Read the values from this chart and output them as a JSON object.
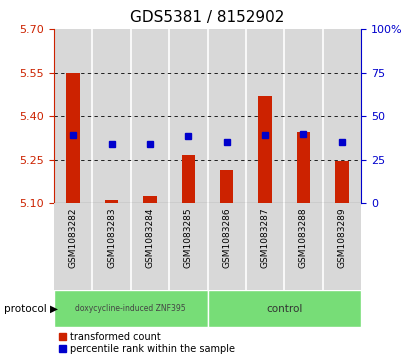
{
  "title": "GDS5381 / 8152902",
  "samples": [
    "GSM1083282",
    "GSM1083283",
    "GSM1083284",
    "GSM1083285",
    "GSM1083286",
    "GSM1083287",
    "GSM1083288",
    "GSM1083289"
  ],
  "bar_tops": [
    5.548,
    5.112,
    5.125,
    5.265,
    5.215,
    5.47,
    5.345,
    5.245
  ],
  "bar_bottom": 5.1,
  "blue_y": [
    5.335,
    5.305,
    5.305,
    5.33,
    5.31,
    5.335,
    5.34,
    5.31
  ],
  "ylim": [
    5.1,
    5.7
  ],
  "y2lim": [
    0,
    100
  ],
  "yticks_left": [
    5.1,
    5.25,
    5.4,
    5.55,
    5.7
  ],
  "y2ticks": [
    0,
    25,
    50,
    75,
    100
  ],
  "y2tick_labels": [
    "0",
    "25",
    "50",
    "75",
    "100%"
  ],
  "bar_color": "#cc2200",
  "blue_color": "#0000cc",
  "group1_label": "doxycycline-induced ZNF395",
  "group2_label": "control",
  "group1_samples": 4,
  "group2_samples": 4,
  "protocol_label": "protocol",
  "legend1": "transformed count",
  "legend2": "percentile rank within the sample",
  "col_bg_color": "#d8d8d8",
  "green_color": "#77dd77",
  "white_bg": "#ffffff",
  "title_fontsize": 11,
  "red_color": "#cc2200",
  "blue_color2": "#0000cc"
}
